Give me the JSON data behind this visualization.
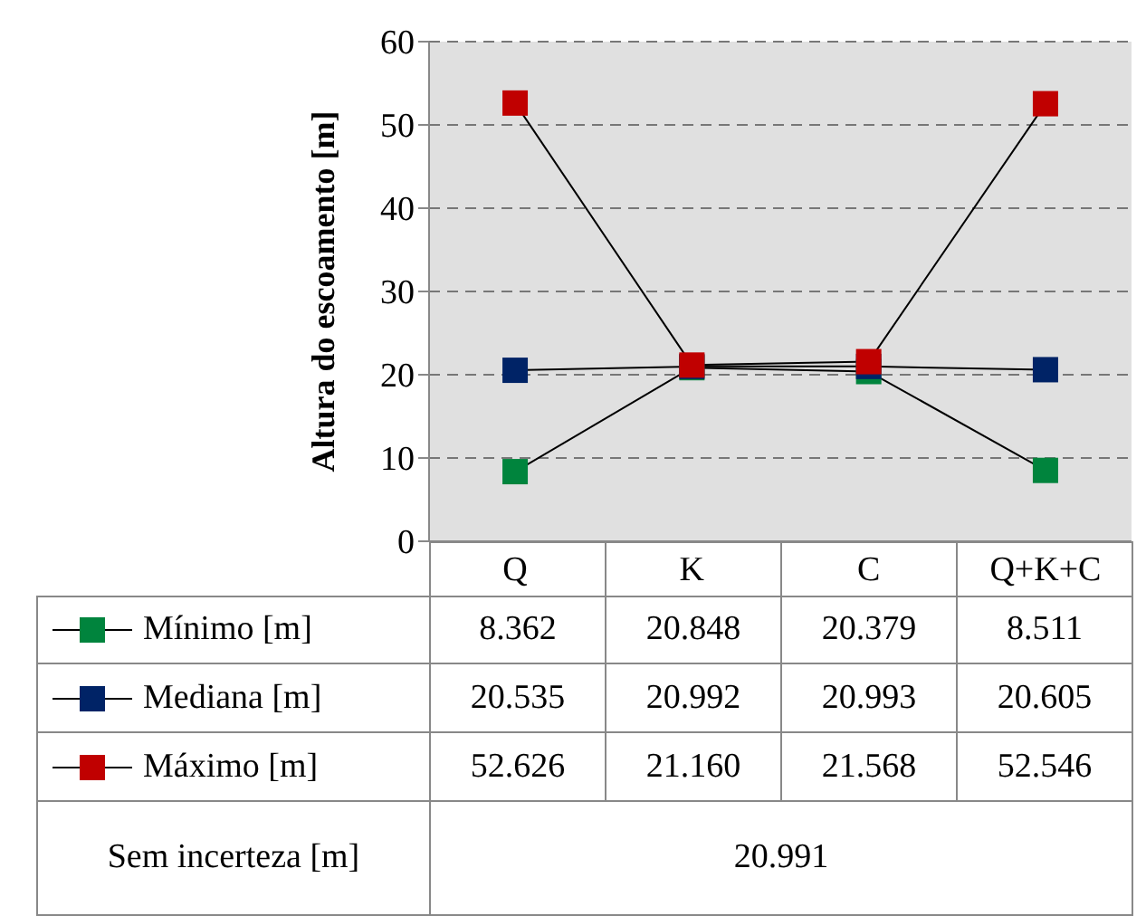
{
  "chart_data": {
    "type": "line",
    "ylabel": "Altura do escoamento [m]",
    "categories": [
      "Q",
      "K",
      "C",
      "Q+K+C"
    ],
    "series": [
      {
        "name": "Mínimo [m]",
        "color": "#00843d",
        "values": [
          8.362,
          20.848,
          20.379,
          8.511
        ],
        "value_labels": [
          "8.362",
          "20.848",
          "20.379",
          "8.511"
        ]
      },
      {
        "name": "Mediana [m]",
        "color": "#002366",
        "values": [
          20.535,
          20.992,
          20.993,
          20.605
        ],
        "value_labels": [
          "20.535",
          "20.992",
          "20.993",
          "20.605"
        ]
      },
      {
        "name": "Máximo [m]",
        "color": "#c00000",
        "values": [
          52.626,
          21.16,
          21.568,
          52.546
        ],
        "value_labels": [
          "52.626",
          "21.160",
          "21.568",
          "52.546"
        ]
      }
    ],
    "ylim": [
      0,
      60
    ],
    "yticks": [
      0,
      10,
      20,
      30,
      40,
      50,
      60
    ],
    "grid": "y",
    "legend": "bottom",
    "marker": "square",
    "line_style": "solid",
    "annotations": [
      "Sem incerteza [m]",
      "20.991"
    ]
  }
}
